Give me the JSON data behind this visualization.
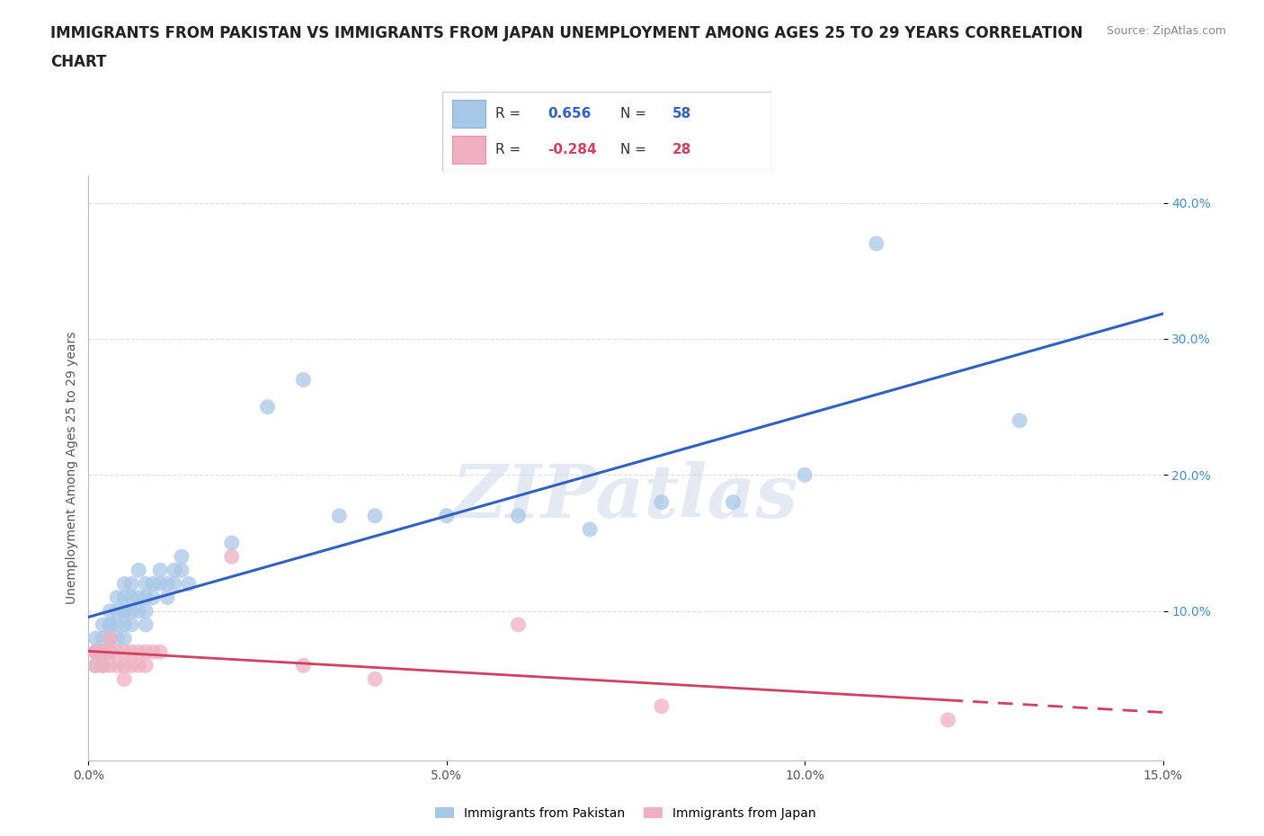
{
  "title_line1": "IMMIGRANTS FROM PAKISTAN VS IMMIGRANTS FROM JAPAN UNEMPLOYMENT AMONG AGES 25 TO 29 YEARS CORRELATION",
  "title_line2": "CHART",
  "source_text": "Source: ZipAtlas.com",
  "watermark": "ZIPatlas",
  "ylabel": "Unemployment Among Ages 25 to 29 years",
  "xlim": [
    0.0,
    0.15
  ],
  "ylim": [
    -0.01,
    0.42
  ],
  "xticks": [
    0.0,
    0.05,
    0.1,
    0.15
  ],
  "xtick_labels": [
    "0.0%",
    "5.0%",
    "10.0%",
    "15.0%"
  ],
  "yticks": [
    0.1,
    0.2,
    0.3,
    0.4
  ],
  "ytick_labels": [
    "10.0%",
    "20.0%",
    "30.0%",
    "40.0%"
  ],
  "pakistan_R": 0.656,
  "pakistan_N": 58,
  "japan_R": -0.284,
  "japan_N": 28,
  "pakistan_color": "#a8c8e8",
  "japan_color": "#f0b0c0",
  "pakistan_line_color": "#3060c0",
  "japan_line_color": "#d04060",
  "legend_labels": [
    "Immigrants from Pakistan",
    "Immigrants from Japan"
  ],
  "pakistan_x": [
    0.001,
    0.001,
    0.001,
    0.001,
    0.002,
    0.002,
    0.002,
    0.002,
    0.003,
    0.003,
    0.003,
    0.003,
    0.003,
    0.004,
    0.004,
    0.004,
    0.004,
    0.005,
    0.005,
    0.005,
    0.005,
    0.005,
    0.005,
    0.006,
    0.006,
    0.006,
    0.006,
    0.007,
    0.007,
    0.007,
    0.008,
    0.008,
    0.008,
    0.008,
    0.009,
    0.009,
    0.01,
    0.01,
    0.011,
    0.011,
    0.012,
    0.012,
    0.013,
    0.013,
    0.014,
    0.02,
    0.025,
    0.03,
    0.035,
    0.04,
    0.05,
    0.06,
    0.07,
    0.08,
    0.09,
    0.1,
    0.11,
    0.13
  ],
  "pakistan_y": [
    0.07,
    0.08,
    0.07,
    0.06,
    0.08,
    0.07,
    0.09,
    0.06,
    0.09,
    0.08,
    0.07,
    0.1,
    0.09,
    0.1,
    0.09,
    0.08,
    0.11,
    0.1,
    0.09,
    0.11,
    0.1,
    0.08,
    0.12,
    0.11,
    0.09,
    0.12,
    0.1,
    0.11,
    0.1,
    0.13,
    0.12,
    0.11,
    0.1,
    0.09,
    0.12,
    0.11,
    0.12,
    0.13,
    0.11,
    0.12,
    0.13,
    0.12,
    0.14,
    0.13,
    0.12,
    0.15,
    0.25,
    0.27,
    0.17,
    0.17,
    0.17,
    0.17,
    0.16,
    0.18,
    0.18,
    0.2,
    0.37,
    0.24
  ],
  "japan_x": [
    0.001,
    0.001,
    0.001,
    0.001,
    0.002,
    0.002,
    0.003,
    0.003,
    0.003,
    0.004,
    0.004,
    0.005,
    0.005,
    0.005,
    0.006,
    0.006,
    0.007,
    0.007,
    0.008,
    0.008,
    0.009,
    0.01,
    0.02,
    0.03,
    0.04,
    0.06,
    0.08,
    0.12
  ],
  "japan_y": [
    0.07,
    0.06,
    0.07,
    0.07,
    0.07,
    0.06,
    0.07,
    0.06,
    0.08,
    0.07,
    0.06,
    0.07,
    0.06,
    0.05,
    0.07,
    0.06,
    0.07,
    0.06,
    0.07,
    0.06,
    0.07,
    0.07,
    0.14,
    0.06,
    0.05,
    0.09,
    0.03,
    0.02
  ],
  "background_color": "#ffffff",
  "grid_color": "#dddddd",
  "title_fontsize": 12,
  "axis_label_fontsize": 10,
  "tick_fontsize": 10,
  "legend_fontsize": 10,
  "source_fontsize": 9
}
